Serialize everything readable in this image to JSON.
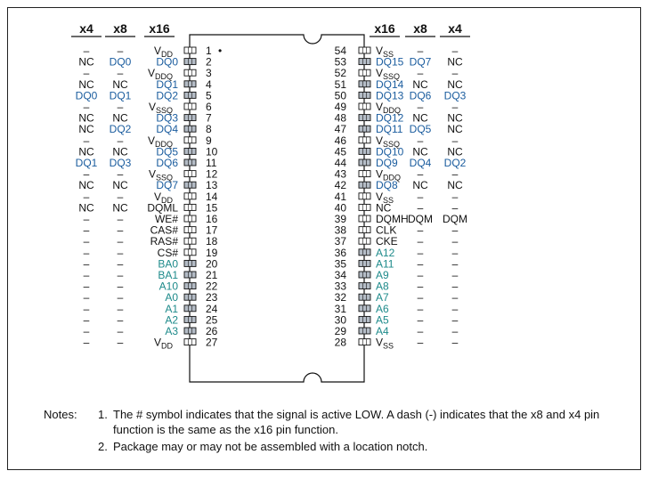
{
  "headers": {
    "left": [
      "x4",
      "x8",
      "x16"
    ],
    "right": [
      "x16",
      "x8",
      "x4"
    ]
  },
  "colors": {
    "text": "#111111",
    "blue_signal": "#1a5c9e",
    "teal_signal": "#1d8a8a",
    "pin_fill": "#ffffff",
    "pin_fill_gray": "#b4bcc6"
  },
  "left_pins": [
    {
      "pin": "1",
      "x4": "–",
      "x8": "–",
      "x16": "VDD",
      "x16_sub": "DD",
      "x16_base": "V",
      "style": "power",
      "x16_color": "text"
    },
    {
      "pin": "2",
      "x4": "NC",
      "x8": "DQ0",
      "x16": "DQ0",
      "style": "data",
      "x16_color": "blue",
      "x8_color": "blue"
    },
    {
      "pin": "3",
      "x4": "–",
      "x8": "–",
      "x16": "VDDQ",
      "x16_sub": "DDQ",
      "x16_base": "V",
      "style": "power",
      "x16_color": "text"
    },
    {
      "pin": "4",
      "x4": "NC",
      "x8": "NC",
      "x16": "DQ1",
      "style": "data",
      "x16_color": "blue"
    },
    {
      "pin": "5",
      "x4": "DQ0",
      "x8": "DQ1",
      "x16": "DQ2",
      "style": "data",
      "x16_color": "blue",
      "x8_color": "blue",
      "x4_color": "blue"
    },
    {
      "pin": "6",
      "x4": "–",
      "x8": "–",
      "x16": "VSSQ",
      "x16_sub": "SSQ",
      "x16_base": "V",
      "style": "power",
      "x16_color": "text"
    },
    {
      "pin": "7",
      "x4": "NC",
      "x8": "NC",
      "x16": "DQ3",
      "style": "data",
      "x16_color": "blue"
    },
    {
      "pin": "8",
      "x4": "NC",
      "x8": "DQ2",
      "x16": "DQ4",
      "style": "data",
      "x16_color": "blue",
      "x8_color": "blue"
    },
    {
      "pin": "9",
      "x4": "–",
      "x8": "–",
      "x16": "VDDQ",
      "x16_sub": "DDQ",
      "x16_base": "V",
      "style": "power",
      "x16_color": "text"
    },
    {
      "pin": "10",
      "x4": "NC",
      "x8": "NC",
      "x16": "DQ5",
      "style": "data",
      "x16_color": "blue"
    },
    {
      "pin": "11",
      "x4": "DQ1",
      "x8": "DQ3",
      "x16": "DQ6",
      "style": "data",
      "x16_color": "blue",
      "x8_color": "blue",
      "x4_color": "blue"
    },
    {
      "pin": "12",
      "x4": "–",
      "x8": "–",
      "x16": "VSSQ",
      "x16_sub": "SSQ",
      "x16_base": "V",
      "style": "power",
      "x16_color": "text"
    },
    {
      "pin": "13",
      "x4": "NC",
      "x8": "NC",
      "x16": "DQ7",
      "style": "data",
      "x16_color": "blue"
    },
    {
      "pin": "14",
      "x4": "–",
      "x8": "–",
      "x16": "VDD",
      "x16_sub": "DD",
      "x16_base": "V",
      "style": "power",
      "x16_color": "text"
    },
    {
      "pin": "15",
      "x4": "NC",
      "x8": "NC",
      "x16": "DQML",
      "style": "power",
      "x16_color": "text"
    },
    {
      "pin": "16",
      "x4": "–",
      "x8": "–",
      "x16": "WE#",
      "style": "power",
      "x16_color": "text"
    },
    {
      "pin": "17",
      "x4": "–",
      "x8": "–",
      "x16": "CAS#",
      "style": "power",
      "x16_color": "text"
    },
    {
      "pin": "18",
      "x4": "–",
      "x8": "–",
      "x16": "RAS#",
      "style": "power",
      "x16_color": "text"
    },
    {
      "pin": "19",
      "x4": "–",
      "x8": "–",
      "x16": "CS#",
      "style": "power",
      "x16_color": "text"
    },
    {
      "pin": "20",
      "x4": "–",
      "x8": "–",
      "x16": "BA0",
      "style": "addr",
      "x16_color": "teal"
    },
    {
      "pin": "21",
      "x4": "–",
      "x8": "–",
      "x16": "BA1",
      "style": "addr",
      "x16_color": "teal"
    },
    {
      "pin": "22",
      "x4": "–",
      "x8": "–",
      "x16": "A10",
      "style": "addr",
      "x16_color": "teal"
    },
    {
      "pin": "23",
      "x4": "–",
      "x8": "–",
      "x16": "A0",
      "style": "addr",
      "x16_color": "teal"
    },
    {
      "pin": "24",
      "x4": "–",
      "x8": "–",
      "x16": "A1",
      "style": "addr",
      "x16_color": "teal"
    },
    {
      "pin": "25",
      "x4": "–",
      "x8": "–",
      "x16": "A2",
      "style": "addr",
      "x16_color": "teal"
    },
    {
      "pin": "26",
      "x4": "–",
      "x8": "–",
      "x16": "A3",
      "style": "addr",
      "x16_color": "teal"
    },
    {
      "pin": "27",
      "x4": "–",
      "x8": "–",
      "x16": "VDD",
      "x16_sub": "DD",
      "x16_base": "V",
      "style": "power",
      "x16_color": "text"
    }
  ],
  "right_pins": [
    {
      "pin": "54",
      "x16": "VSS",
      "x16_sub": "SS",
      "x16_base": "V",
      "x8": "–",
      "x4": "–",
      "style": "power",
      "x16_color": "text"
    },
    {
      "pin": "53",
      "x16": "DQ15",
      "x8": "DQ7",
      "x4": "NC",
      "style": "data",
      "x16_color": "blue",
      "x8_color": "blue"
    },
    {
      "pin": "52",
      "x16": "VSSQ",
      "x16_sub": "SSQ",
      "x16_base": "V",
      "x8": "–",
      "x4": "–",
      "style": "power",
      "x16_color": "text"
    },
    {
      "pin": "51",
      "x16": "DQ14",
      "x8": "NC",
      "x4": "NC",
      "style": "data",
      "x16_color": "blue"
    },
    {
      "pin": "50",
      "x16": "DQ13",
      "x8": "DQ6",
      "x4": "DQ3",
      "style": "data",
      "x16_color": "blue",
      "x8_color": "blue",
      "x4_color": "blue"
    },
    {
      "pin": "49",
      "x16": "VDDQ",
      "x16_sub": "DDQ",
      "x16_base": "V",
      "x8": "–",
      "x4": "–",
      "style": "power",
      "x16_color": "text"
    },
    {
      "pin": "48",
      "x16": "DQ12",
      "x8": "NC",
      "x4": "NC",
      "style": "data",
      "x16_color": "blue"
    },
    {
      "pin": "47",
      "x16": "DQ11",
      "x8": "DQ5",
      "x4": "NC",
      "style": "data",
      "x16_color": "blue",
      "x8_color": "blue"
    },
    {
      "pin": "46",
      "x16": "VSSQ",
      "x16_sub": "SSQ",
      "x16_base": "V",
      "x8": "–",
      "x4": "–",
      "style": "power",
      "x16_color": "text"
    },
    {
      "pin": "45",
      "x16": "DQ10",
      "x8": "NC",
      "x4": "NC",
      "style": "data",
      "x16_color": "blue"
    },
    {
      "pin": "44",
      "x16": "DQ9",
      "x8": "DQ4",
      "x4": "DQ2",
      "style": "data",
      "x16_color": "blue",
      "x8_color": "blue",
      "x4_color": "blue"
    },
    {
      "pin": "43",
      "x16": "VDDQ",
      "x16_sub": "DDQ",
      "x16_base": "V",
      "x8": "–",
      "x4": "–",
      "style": "power",
      "x16_color": "text"
    },
    {
      "pin": "42",
      "x16": "DQ8",
      "x8": "NC",
      "x4": "NC",
      "style": "data",
      "x16_color": "blue"
    },
    {
      "pin": "41",
      "x16": "VSS",
      "x16_sub": "SS",
      "x16_base": "V",
      "x8": "–",
      "x4": "–",
      "style": "power",
      "x16_color": "text"
    },
    {
      "pin": "40",
      "x16": "NC",
      "x8": "–",
      "x4": "–",
      "style": "power",
      "x16_color": "text"
    },
    {
      "pin": "39",
      "x16": "DQMH",
      "x8": "DQM",
      "x4": "DQM",
      "style": "power",
      "x16_color": "text"
    },
    {
      "pin": "38",
      "x16": "CLK",
      "x8": "–",
      "x4": "–",
      "style": "power",
      "x16_color": "text"
    },
    {
      "pin": "37",
      "x16": "CKE",
      "x8": "–",
      "x4": "–",
      "style": "power",
      "x16_color": "text"
    },
    {
      "pin": "36",
      "x16": "A12",
      "x8": "–",
      "x4": "–",
      "style": "addr",
      "x16_color": "teal"
    },
    {
      "pin": "35",
      "x16": "A11",
      "x8": "–",
      "x4": "–",
      "style": "addr",
      "x16_color": "teal"
    },
    {
      "pin": "34",
      "x16": "A9",
      "x8": "–",
      "x4": "–",
      "style": "addr",
      "x16_color": "teal"
    },
    {
      "pin": "33",
      "x16": "A8",
      "x8": "–",
      "x4": "–",
      "style": "addr",
      "x16_color": "teal"
    },
    {
      "pin": "32",
      "x16": "A7",
      "x8": "–",
      "x4": "–",
      "style": "addr",
      "x16_color": "teal"
    },
    {
      "pin": "31",
      "x16": "A6",
      "x8": "–",
      "x4": "–",
      "style": "addr",
      "x16_color": "teal"
    },
    {
      "pin": "30",
      "x16": "A5",
      "x8": "–",
      "x4": "–",
      "style": "addr",
      "x16_color": "teal"
    },
    {
      "pin": "29",
      "x16": "A4",
      "x8": "–",
      "x4": "–",
      "style": "addr",
      "x16_color": "teal"
    },
    {
      "pin": "28",
      "x16": "VSS",
      "x16_sub": "SS",
      "x16_base": "V",
      "x8": "–",
      "x4": "–",
      "style": "power",
      "x16_color": "text"
    }
  ],
  "pin1_marker": "•",
  "notes": {
    "heading": "Notes:",
    "items": [
      {
        "num": "1.",
        "text": "The # symbol indicates that the signal is active LOW. A dash (-) indicates that the x8 and x4 pin function is the same as the x16 pin function."
      },
      {
        "num": "2.",
        "text": "Package may or may not be assembled with a location notch."
      }
    ]
  }
}
